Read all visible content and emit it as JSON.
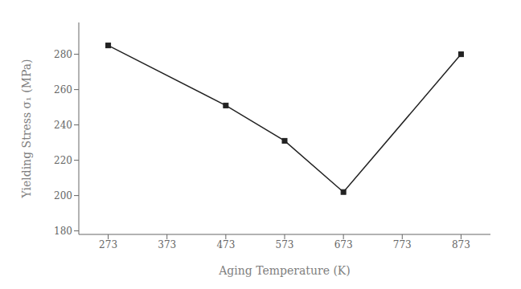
{
  "chart_data": {
    "type": "line",
    "x": [
      273,
      473,
      573,
      673,
      873
    ],
    "values": [
      285,
      251,
      231,
      202,
      280
    ],
    "xlabel": "Aging Temperature (K)",
    "ylabel": "Yielding Stress σ₁ (MPa)",
    "xlim": [
      223,
      923
    ],
    "ylim": [
      178,
      298
    ],
    "xticks": [
      273,
      373,
      473,
      573,
      673,
      773,
      873
    ],
    "yticks": [
      180,
      200,
      220,
      240,
      260,
      280
    ],
    "color": "#222222",
    "marker": "square",
    "grid": false
  }
}
